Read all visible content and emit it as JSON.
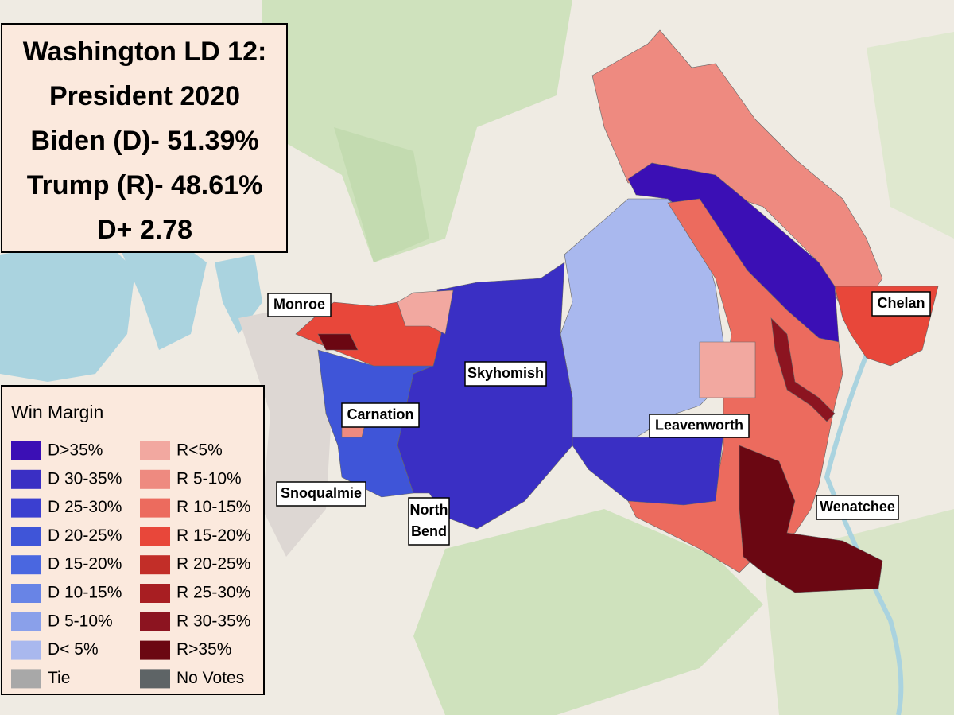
{
  "title": {
    "lines": [
      "Washington LD 12:",
      "President 2020",
      "Biden (D)- 51.39%",
      "Trump (R)- 48.61%",
      "D+ 2.78"
    ]
  },
  "legend": {
    "title": "Win Margin",
    "items": [
      {
        "label": "D>35%",
        "color": "#3b0fb5"
      },
      {
        "label": "D 30-35%",
        "color": "#3a2fc4"
      },
      {
        "label": "D 25-30%",
        "color": "#3b3fd0"
      },
      {
        "label": "D 20-25%",
        "color": "#3f55d8"
      },
      {
        "label": "D 15-20%",
        "color": "#4a67e0"
      },
      {
        "label": "D 10-15%",
        "color": "#6884e6"
      },
      {
        "label": "D 5-10%",
        "color": "#8aa0ea"
      },
      {
        "label": "D< 5%",
        "color": "#a9b8ee"
      },
      {
        "label": "Tie",
        "color": "#a8a8a8"
      },
      {
        "label": "R<5%",
        "color": "#f2a8a0"
      },
      {
        "label": "R 5-10%",
        "color": "#ee8a80"
      },
      {
        "label": "R 10-15%",
        "color": "#ec6b5e"
      },
      {
        "label": "R 15-20%",
        "color": "#e8473a"
      },
      {
        "label": "R 20-25%",
        "color": "#c22e28"
      },
      {
        "label": "R 25-30%",
        "color": "#a81e22"
      },
      {
        "label": "R 30-35%",
        "color": "#8c1420"
      },
      {
        "label": "R>35%",
        "color": "#6b0712"
      },
      {
        "label": "No Votes",
        "color": "#5e6466"
      }
    ]
  },
  "places": [
    {
      "lines": [
        "Monroe"
      ]
    },
    {
      "lines": [
        "Chelan"
      ]
    },
    {
      "lines": [
        "Skyhomish"
      ]
    },
    {
      "lines": [
        "Carnation"
      ]
    },
    {
      "lines": [
        "Leavenworth"
      ]
    },
    {
      "lines": [
        "Snoqualmie"
      ]
    },
    {
      "lines": [
        "North",
        "Bend"
      ]
    },
    {
      "lines": [
        "Wenatchee"
      ]
    }
  ]
}
